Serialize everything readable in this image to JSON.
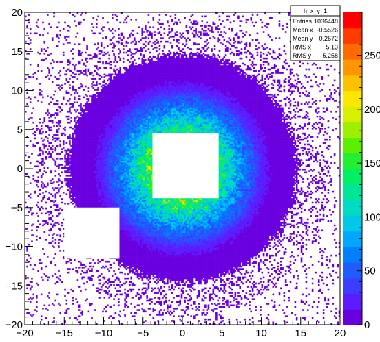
{
  "chart_data": {
    "type": "heatmap",
    "title": "",
    "xlabel": "",
    "ylabel": "",
    "xlim": [
      -20,
      20
    ],
    "ylim": [
      -20,
      20
    ],
    "x_ticks": [
      -20,
      -15,
      -10,
      -5,
      0,
      5,
      10,
      15,
      20
    ],
    "y_ticks": [
      -20,
      -15,
      -10,
      -5,
      0,
      5,
      10,
      15,
      20
    ],
    "colorbar": {
      "range": [
        0,
        290
      ],
      "ticks": [
        0,
        50,
        100,
        150,
        200,
        250
      ],
      "palette": [
        "#6a00e0",
        "#5c1cff",
        "#3d3dff",
        "#1e5cff",
        "#0080ff",
        "#00a6ff",
        "#00c8e8",
        "#00dcc0",
        "#00e696",
        "#00f064",
        "#20f030",
        "#5cf000",
        "#9cf000",
        "#d8f000",
        "#ffe600",
        "#ffc000",
        "#ff9600",
        "#ff6a00",
        "#ff3c00",
        "#ff0000"
      ]
    },
    "description_model": {
      "center": [
        0.5,
        0.5
      ],
      "core_peak_counts": 240,
      "gaps": [
        {
          "x": [
            -3.8,
            4.5
          ],
          "y": [
            -3.8,
            4.5
          ]
        },
        {
          "x": [
            -15,
            -8
          ],
          "y": [
            -11.5,
            -5
          ]
        }
      ]
    },
    "stats": {
      "name": "h_x_y_1",
      "rows": [
        {
          "label": "Entries",
          "value": "1036448"
        },
        {
          "label": "Mean x",
          "value": "-0.5526"
        },
        {
          "label": "Mean y",
          "value": "-0.2672"
        },
        {
          "label": "RMS x",
          "value": "5.13"
        },
        {
          "label": "RMS y",
          "value": "5.258"
        }
      ]
    }
  }
}
